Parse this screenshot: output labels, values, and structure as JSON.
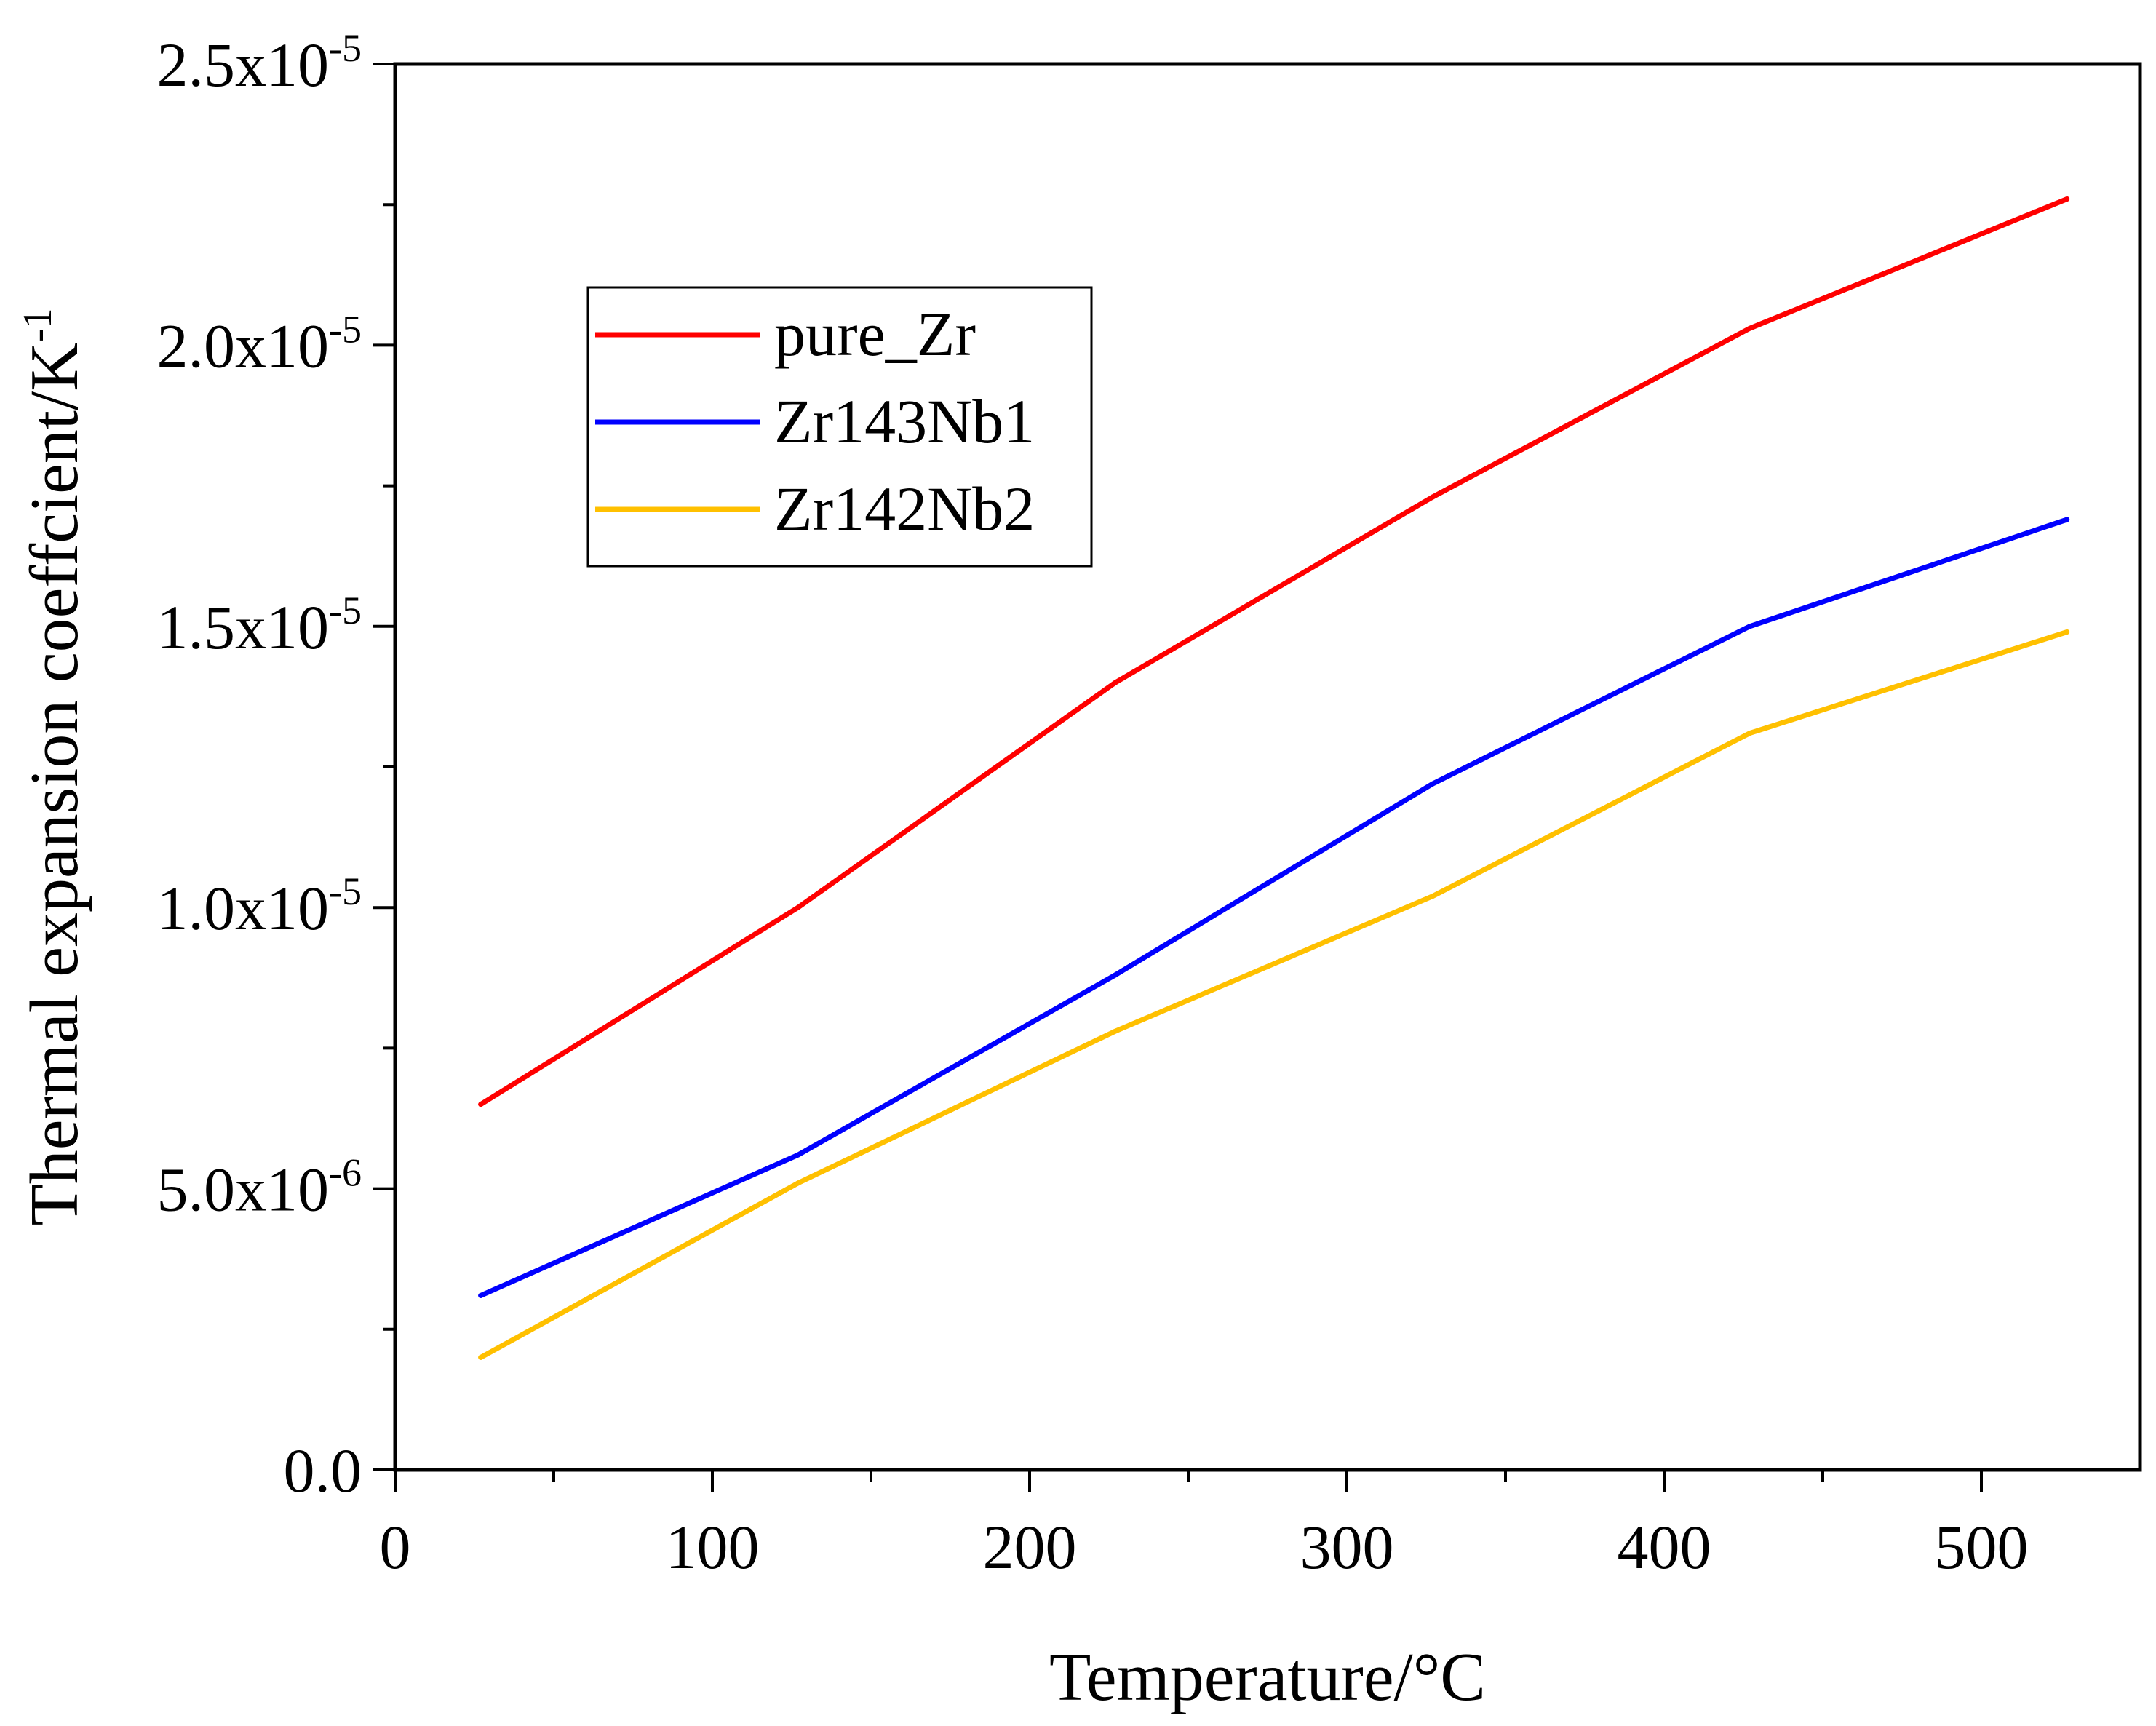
{
  "chart_data": {
    "type": "line",
    "xlabel": "Temperature/°C",
    "ylabel": {
      "base": "Thermal expansion coeffcient/K",
      "exponent": "-1"
    },
    "xlim": [
      0,
      550
    ],
    "ylim": [
      0,
      2.5e-05
    ],
    "x_major_ticks": [
      0,
      100,
      200,
      300,
      400,
      500
    ],
    "x_minor_ticks": [
      50,
      150,
      250,
      350,
      450
    ],
    "x_tick_labels": [
      "0",
      "100",
      "200",
      "300",
      "400",
      "500"
    ],
    "y_major_ticks": [
      0,
      5e-06,
      1e-05,
      1.5e-05,
      2e-05,
      2.5e-05
    ],
    "y_minor_ticks": [
      2.5e-06,
      7.5e-06,
      1.25e-05,
      1.75e-05,
      2.25e-05
    ],
    "y_tick_labels": [
      {
        "base": "0.0",
        "exponent": ""
      },
      {
        "base": "5.0x10",
        "exponent": "-6"
      },
      {
        "base": "1.0x10",
        "exponent": "-5"
      },
      {
        "base": "1.5x10",
        "exponent": "-5"
      },
      {
        "base": "2.0x10",
        "exponent": "-5"
      },
      {
        "base": "2.5x10",
        "exponent": "-5"
      }
    ],
    "legend_position": "upper-left",
    "series": [
      {
        "name": "pure_Zr",
        "color": "#ff0000",
        "x": [
          27,
          127,
          227,
          327,
          427,
          527
        ],
        "values": [
          6.5e-06,
          1e-05,
          1.4e-05,
          1.73e-05,
          2.03e-05,
          2.26e-05
        ]
      },
      {
        "name": "Zr143Nb1",
        "color": "#0000ff",
        "x": [
          27,
          127,
          227,
          327,
          427,
          527
        ],
        "values": [
          3.1e-06,
          5.6e-06,
          8.8e-06,
          1.22e-05,
          1.5e-05,
          1.69e-05
        ]
      },
      {
        "name": "Zr142Nb2",
        "color": "#ffc000",
        "x": [
          27,
          127,
          227,
          327,
          427,
          527
        ],
        "values": [
          2e-06,
          5.1e-06,
          7.8e-06,
          1.02e-05,
          1.31e-05,
          1.49e-05
        ]
      }
    ]
  }
}
